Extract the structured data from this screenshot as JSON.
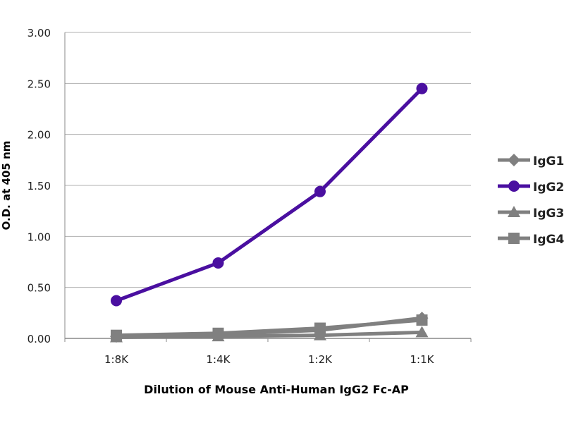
{
  "chart_data": {
    "type": "line",
    "title": "",
    "xlabel": "Dilution of Mouse Anti-Human IgG2 Fc-AP",
    "ylabel": "O.D. at 405 nm",
    "categories": [
      "1:8K",
      "1:4K",
      "1:2K",
      "1:1K"
    ],
    "ylim": [
      0,
      3
    ],
    "yticks": [
      "0.00",
      "0.50",
      "1.00",
      "1.50",
      "2.00",
      "2.50",
      "3.00"
    ],
    "grid": true,
    "legend_position": "right",
    "series": [
      {
        "name": "IgG1",
        "values": [
          0.02,
          0.04,
          0.08,
          0.2
        ],
        "color": "#808080",
        "marker": "diamond"
      },
      {
        "name": "IgG2",
        "values": [
          0.37,
          0.74,
          1.44,
          2.45
        ],
        "color": "#4a0fa0",
        "marker": "circle"
      },
      {
        "name": "IgG3",
        "values": [
          0.01,
          0.02,
          0.03,
          0.06
        ],
        "color": "#808080",
        "marker": "triangle"
      },
      {
        "name": "IgG4",
        "values": [
          0.03,
          0.05,
          0.1,
          0.18
        ],
        "color": "#808080",
        "marker": "square"
      }
    ]
  }
}
